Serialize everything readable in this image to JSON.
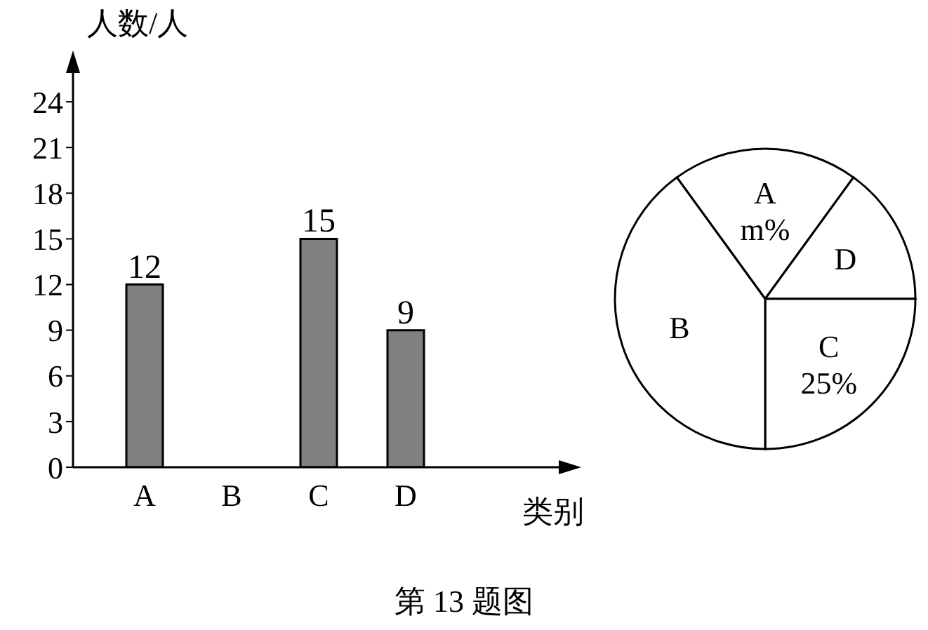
{
  "chart_data": [
    {
      "type": "bar",
      "xlabel": "类别",
      "ylabel": "人数/人",
      "categories": [
        "A",
        "B",
        "C",
        "D"
      ],
      "values": [
        12,
        null,
        15,
        9
      ],
      "color": "#808080",
      "ylim": [
        0,
        27
      ],
      "yticks": [
        0,
        3,
        6,
        9,
        12,
        15,
        18,
        21,
        24
      ],
      "data_labels": true,
      "annotations": [
        "第 13 题图"
      ]
    },
    {
      "type": "pie",
      "categories": [
        "A",
        "D",
        "C",
        "B"
      ],
      "values": [
        20,
        15,
        25,
        40
      ],
      "colors": [
        "#ffffff",
        "#ffffff",
        "#ffffff",
        "#ffffff"
      ],
      "value_labels": [
        "m%",
        null,
        "25%",
        null
      ]
    }
  ]
}
